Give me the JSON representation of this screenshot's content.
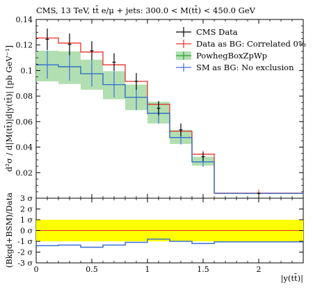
{
  "chart_data": {
    "title": "CMS, 13 TeV, tt̄ e/μ + jets: 300.0 < M(tt̄) < 450.0 GeV",
    "xlabel": "|y(tt̄)|",
    "ylabel": "d²σ / d|M(tt̄)|d|y(tt̄)|  [pb GeV⁻¹]",
    "ratio_ylabel": "(Bkgd+BSM)/Data",
    "legend_position": "top-right",
    "main": {
      "type": "line",
      "xlim": [
        0,
        2.4
      ],
      "ylim": [
        0,
        0.14
      ],
      "xticks": [
        0,
        0.5,
        1,
        1.5,
        2
      ],
      "xtick_labels": [
        "0",
        "0.5",
        "1",
        "1.5",
        "2"
      ],
      "yticks": [
        0.02,
        0.04,
        0.06,
        0.08,
        0.1,
        0.12,
        0.14
      ],
      "ytick_labels": [
        "0.02",
        "0.04",
        "0.06",
        "0.08",
        "0.1",
        "0.12",
        "0.14"
      ],
      "bins": [
        0,
        0.2,
        0.4,
        0.6,
        0.8,
        1.0,
        1.2,
        1.4,
        1.6,
        2.4
      ],
      "series": [
        {
          "name": "CMS Data",
          "kind": "points",
          "color": "#000000",
          "values": [
            0.1245,
            0.1205,
            0.1155,
            0.1065,
            0.0915,
            0.0705,
            0.0535,
            0.0325,
            0.0038
          ],
          "errors": [
            0.0085,
            0.0085,
            0.0075,
            0.007,
            0.0065,
            0.0055,
            0.005,
            0.0035,
            0.0008
          ]
        },
        {
          "name": "Data as BG: Correlated 0%",
          "kind": "histogram",
          "color": "#e8312a",
          "values": [
            0.1255,
            0.1215,
            0.1145,
            0.1045,
            0.0915,
            0.0735,
            0.0525,
            0.0345,
            0.004
          ]
        },
        {
          "name": "PowhegBoxZpWp",
          "kind": "band",
          "color": "#2ca02c",
          "band_color": "#b2dfb2",
          "values": [
            0.1045,
            0.103,
            0.0975,
            0.089,
            0.079,
            0.0665,
            0.0475,
            0.0285,
            0.0038
          ],
          "band_low": [
            0.0915,
            0.0895,
            0.085,
            0.0775,
            0.069,
            0.0585,
            0.0425,
            0.0255,
            0.0034
          ],
          "band_high": [
            0.1155,
            0.115,
            0.1085,
            0.0995,
            0.089,
            0.0755,
            0.0535,
            0.0325,
            0.0042
          ]
        },
        {
          "name": "SM as BG: No exclusion",
          "kind": "points-histogram",
          "color": "#3a6fd8",
          "values": [
            0.1045,
            0.103,
            0.0975,
            0.089,
            0.079,
            0.0665,
            0.0475,
            0.0285,
            0.0038
          ],
          "errors": [
            0.011,
            0.011,
            0.01,
            0.01,
            0.01,
            0.008,
            0.0055,
            0.004,
            0.0006
          ]
        }
      ]
    },
    "ratio": {
      "type": "line",
      "xlim": [
        0,
        2.4
      ],
      "ylim": [
        -3,
        3
      ],
      "yticks": [
        -3,
        -2,
        -1,
        0,
        1,
        2,
        3
      ],
      "ytick_labels": [
        "-3 σ",
        "-2 σ",
        "-1 σ",
        "0 σ",
        "1 σ",
        "2 σ",
        "3 σ"
      ],
      "band_1sigma_color": "#ffff00",
      "zero_line_color": "#e8312a",
      "bins": [
        0,
        0.2,
        0.4,
        0.6,
        0.8,
        1.0,
        1.2,
        1.4,
        1.6,
        2.4
      ],
      "values": [
        -1.4,
        -1.35,
        -1.55,
        -1.35,
        -1.1,
        -0.8,
        -1.0,
        -1.2,
        -1.05
      ]
    }
  }
}
